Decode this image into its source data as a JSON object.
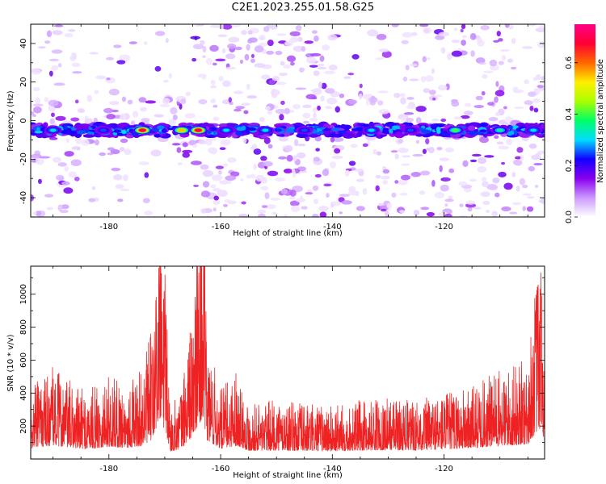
{
  "title": "C2E1.2023.255.01.58.G25",
  "chart_data": [
    {
      "type": "heatmap",
      "xlabel": "Height of straight line (km)",
      "ylabel": "Frequency (Hz)",
      "xlim": [
        -194,
        -102
      ],
      "ylim": [
        -50,
        50
      ],
      "xticks": [
        -180,
        -160,
        -140,
        -120
      ],
      "yticks": [
        -40,
        -20,
        0,
        20,
        40
      ],
      "colorbar": {
        "label": "Normalized spectral amplitude",
        "range": [
          0.0,
          0.75
        ],
        "ticks": [
          "0.0",
          "0.2",
          "0.4",
          "0.6"
        ],
        "colors": [
          "#ffffff",
          "#cc99ff",
          "#8800ee",
          "#1100ff",
          "#00ddff",
          "#00ff66",
          "#aaff00",
          "#ffee00",
          "#ff6600",
          "#ff0033",
          "#ff0088"
        ]
      },
      "band": {
        "center_freq_hz": -5,
        "hot_spots": [
          {
            "x": -190,
            "value": 0.3
          },
          {
            "x": -181,
            "value": 0.25
          },
          {
            "x": -174,
            "value": 0.7
          },
          {
            "x": -167,
            "value": 0.55
          },
          {
            "x": -164,
            "value": 0.7
          },
          {
            "x": -159,
            "value": 0.3
          },
          {
            "x": -152,
            "value": 0.3
          },
          {
            "x": -145,
            "value": 0.25
          },
          {
            "x": -133,
            "value": 0.3
          },
          {
            "x": -126,
            "value": 0.25
          },
          {
            "x": -118,
            "value": 0.4
          },
          {
            "x": -110,
            "value": 0.35
          },
          {
            "x": -104,
            "value": 0.3
          }
        ]
      },
      "grid": false
    },
    {
      "type": "line",
      "xlabel": "Height of straight line (km)",
      "ylabel": "SNR (10 * v/v)",
      "xlim": [
        -194,
        -102
      ],
      "ylim": [
        0,
        1170
      ],
      "xticks": [
        -180,
        -160,
        -140,
        -120
      ],
      "yticks": [
        200,
        400,
        600,
        800,
        1000
      ],
      "color": "#ee2222",
      "envelope": [
        {
          "x": -194,
          "y": 260
        },
        {
          "x": -190,
          "y": 330
        },
        {
          "x": -187,
          "y": 280
        },
        {
          "x": -184,
          "y": 240
        },
        {
          "x": -180,
          "y": 300
        },
        {
          "x": -177,
          "y": 270
        },
        {
          "x": -174,
          "y": 320
        },
        {
          "x": -172,
          "y": 500
        },
        {
          "x": -171,
          "y": 950
        },
        {
          "x": -170,
          "y": 700
        },
        {
          "x": -169,
          "y": 180
        },
        {
          "x": -167,
          "y": 260
        },
        {
          "x": -165,
          "y": 550
        },
        {
          "x": -164,
          "y": 800
        },
        {
          "x": -163.2,
          "y": 1050
        },
        {
          "x": -162.5,
          "y": 450
        },
        {
          "x": -160,
          "y": 250
        },
        {
          "x": -157,
          "y": 330
        },
        {
          "x": -155,
          "y": 200
        },
        {
          "x": -150,
          "y": 210
        },
        {
          "x": -145,
          "y": 200
        },
        {
          "x": -140,
          "y": 190
        },
        {
          "x": -135,
          "y": 210
        },
        {
          "x": -130,
          "y": 220
        },
        {
          "x": -125,
          "y": 210
        },
        {
          "x": -120,
          "y": 240
        },
        {
          "x": -115,
          "y": 260
        },
        {
          "x": -112,
          "y": 300
        },
        {
          "x": -108,
          "y": 330
        },
        {
          "x": -105,
          "y": 360
        },
        {
          "x": -103.5,
          "y": 650
        },
        {
          "x": -102.5,
          "y": 750
        },
        {
          "x": -102,
          "y": 350
        }
      ],
      "grid": false
    }
  ]
}
